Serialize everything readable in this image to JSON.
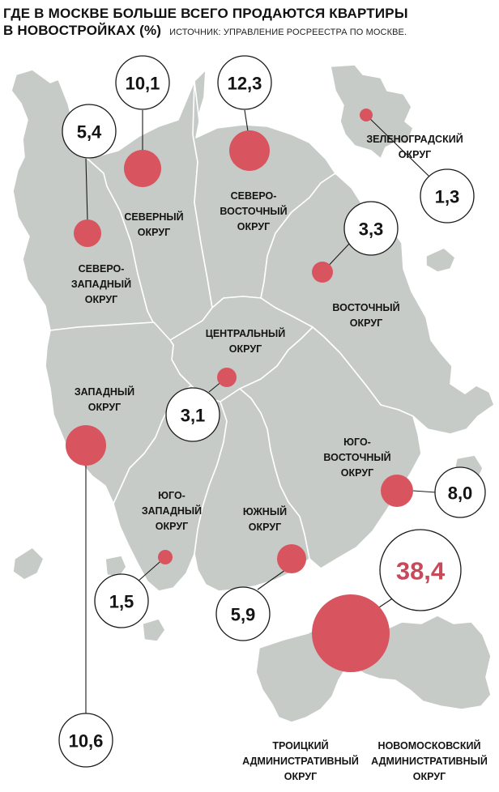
{
  "title": {
    "line1": "ГДЕ В МОСКВЕ БОЛЬШЕ ВСЕГО ПРОДАЮТСЯ КВАРТИРЫ",
    "line2": "В НОВОСТРОЙКАХ (%)",
    "source": "ИСТОЧНИК: УПРАВЛЕНИЕ РОСРЕЕСТРА ПО МОСКВЕ."
  },
  "colors": {
    "land": "#c6cbc8",
    "marker": "#d8555f",
    "highlight_value": "#c84a5a",
    "text": "#141414"
  },
  "districts": [
    {
      "id": "north",
      "label_lines": [
        "СЕВЕРНЫЙ",
        "ОКРУГ"
      ],
      "value": "10,1"
    },
    {
      "id": "north-east",
      "label_lines": [
        "СЕВЕРО-",
        "ВОСТОЧНЫЙ",
        "ОКРУГ"
      ],
      "value": "12,3"
    },
    {
      "id": "north-west",
      "label_lines": [
        "СЕВЕРО-",
        "ЗАПАДНЫЙ",
        "ОКРУГ"
      ],
      "value": "5,4"
    },
    {
      "id": "zelenograd",
      "label_lines": [
        "ЗЕЛЕНОГРАДСКИЙ",
        "ОКРУГ"
      ],
      "value": "1,3"
    },
    {
      "id": "east",
      "label_lines": [
        "ВОСТОЧНЫЙ",
        "ОКРУГ"
      ],
      "value": "3,3"
    },
    {
      "id": "central",
      "label_lines": [
        "ЦЕНТРАЛЬНЫЙ",
        "ОКРУГ"
      ],
      "value": "3,1"
    },
    {
      "id": "west",
      "label_lines": [
        "ЗАПАДНЫЙ",
        "ОКРУГ"
      ],
      "value": "10,6"
    },
    {
      "id": "south-east",
      "label_lines": [
        "ЮГО-",
        "ВОСТОЧНЫЙ",
        "ОКРУГ"
      ],
      "value": "8,0"
    },
    {
      "id": "south-west",
      "label_lines": [
        "ЮГО-",
        "ЗАПАДНЫЙ",
        "ОКРУГ"
      ],
      "value": "1,5"
    },
    {
      "id": "south",
      "label_lines": [
        "ЮЖНЫЙ",
        "ОКРУГ"
      ],
      "value": "5,9"
    },
    {
      "id": "novomoskovsky",
      "label_lines": [
        "НОВОМОСКОВСКИЙ",
        "АДМИНИСТРАТИВНЫЙ",
        "ОКРУГ"
      ],
      "value": "38,4"
    },
    {
      "id": "troitsky",
      "label_lines": [
        "ТРОИЦКИЙ",
        "АДМИНИСТРАТИВНЫЙ",
        "ОКРУГ"
      ],
      "value": ""
    }
  ]
}
